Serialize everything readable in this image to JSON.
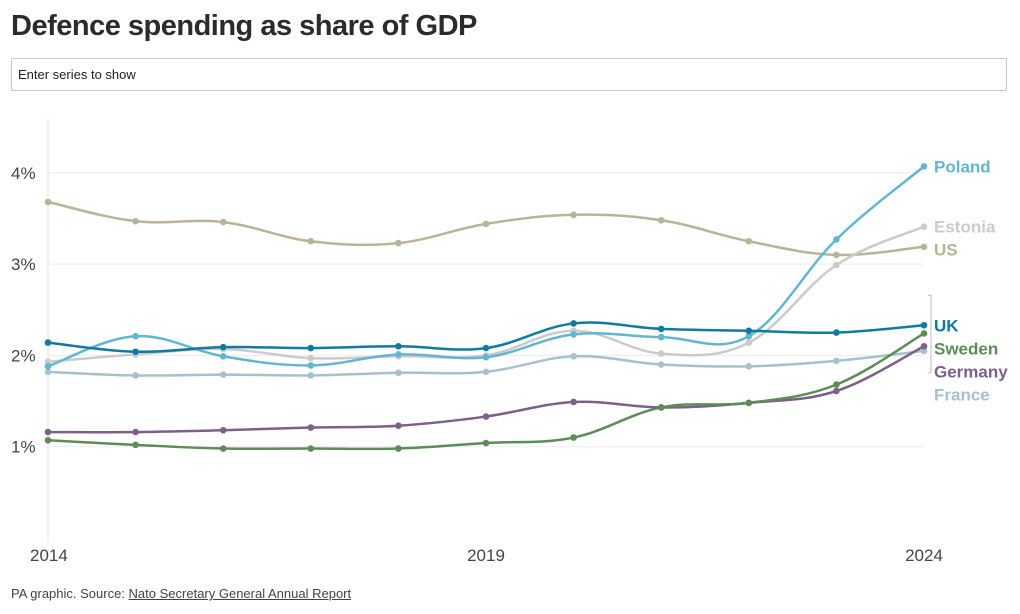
{
  "title": "Defence spending as share of GDP",
  "search": {
    "placeholder": "Enter series to show"
  },
  "footer": {
    "prefix": "PA graphic. Source: ",
    "link_text": "Nato Secretary General Annual Report"
  },
  "chart_data": {
    "type": "line",
    "x": [
      2014,
      2015,
      2016,
      2017,
      2018,
      2019,
      2020,
      2021,
      2022,
      2023,
      2024
    ],
    "xticks": [
      {
        "value": 2014,
        "label": "2014"
      },
      {
        "value": 2019,
        "label": "2019"
      },
      {
        "value": 2024,
        "label": "2024"
      }
    ],
    "yticks": [
      {
        "value": 1,
        "label": "1%"
      },
      {
        "value": 2,
        "label": "2%"
      },
      {
        "value": 3,
        "label": "3%"
      },
      {
        "value": 4,
        "label": "4%"
      }
    ],
    "xlim": [
      2014,
      2024
    ],
    "ylim": [
      0.0,
      4.6
    ],
    "grid": true,
    "series": [
      {
        "name": "Poland",
        "color": "#63b6d0",
        "values": [
          1.88,
          2.21,
          1.99,
          1.89,
          2.01,
          1.98,
          2.23,
          2.2,
          2.21,
          3.27,
          4.07
        ]
      },
      {
        "name": "Estonia",
        "color": "#cbcbcb",
        "values": [
          1.93,
          2.01,
          2.07,
          1.97,
          1.99,
          2.0,
          2.27,
          2.02,
          2.14,
          2.99,
          3.41
        ]
      },
      {
        "name": "US",
        "color": "#b9b497",
        "values": [
          3.68,
          3.47,
          3.46,
          3.25,
          3.23,
          3.44,
          3.54,
          3.48,
          3.25,
          3.1,
          3.19
        ]
      },
      {
        "name": "UK",
        "color": "#117aa0",
        "values": [
          2.14,
          2.04,
          2.09,
          2.08,
          2.1,
          2.08,
          2.35,
          2.29,
          2.27,
          2.25,
          2.33
        ]
      },
      {
        "name": "Sweden",
        "color": "#5d8c59",
        "values": [
          1.07,
          1.02,
          0.98,
          0.98,
          0.98,
          1.04,
          1.1,
          1.43,
          1.48,
          1.68,
          2.24
        ]
      },
      {
        "name": "Germany",
        "color": "#7b6189",
        "values": [
          1.16,
          1.16,
          1.18,
          1.21,
          1.23,
          1.33,
          1.49,
          1.43,
          1.48,
          1.61,
          2.1
        ]
      },
      {
        "name": "France",
        "color": "#a8c0cc",
        "values": [
          1.82,
          1.78,
          1.79,
          1.78,
          1.81,
          1.82,
          1.99,
          1.9,
          1.88,
          1.94,
          2.05
        ]
      }
    ]
  }
}
